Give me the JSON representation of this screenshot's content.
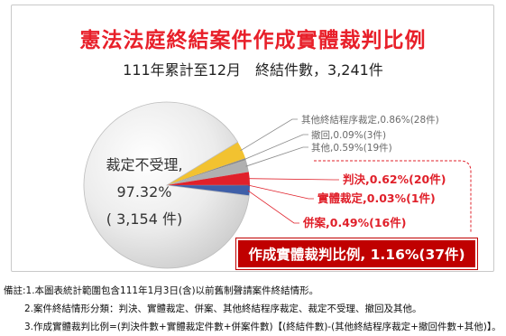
{
  "header": {
    "title": "憲法法庭終結案件作成實體裁判比例",
    "subtitle": "111年累計至12月　終結件數，3,241件"
  },
  "chart_data": {
    "type": "pie",
    "title": "憲法法庭終結案件作成實體裁判比例",
    "subtitle": "111年累計至12月　終結件數，3,241件",
    "total": 3241,
    "slices": [
      {
        "key": "refused",
        "label": "裁定不受理",
        "percent": 97.32,
        "count": 3154,
        "color": "#e4e4e4"
      },
      {
        "key": "other_proc",
        "label": "其他終結程序裁定",
        "percent": 0.86,
        "count": 28,
        "color": "#f2c230"
      },
      {
        "key": "withdrawn",
        "label": "撤回",
        "percent": 0.09,
        "count": 3,
        "color": "#8c8c8c"
      },
      {
        "key": "other",
        "label": "其他",
        "percent": 0.59,
        "count": 19,
        "color": "#b0b0b0"
      },
      {
        "key": "judgment",
        "label": "判決",
        "percent": 0.62,
        "count": 20,
        "color": "#e0202a"
      },
      {
        "key": "substantive",
        "label": "實體裁定",
        "percent": 0.03,
        "count": 1,
        "color": "#8b1a1a"
      },
      {
        "key": "merged",
        "label": "併案",
        "percent": 0.49,
        "count": 16,
        "color": "#3f5fa8"
      }
    ],
    "labels": {
      "refused_name": "裁定不受理,",
      "refused_pct": "97.32%",
      "refused_count": "( 3,154 件)",
      "other_proc": "其他終結程序裁定,0.86%(28件)",
      "withdrawn": "撤回,0.09%(3件)",
      "other": "其他,0.59%(19件)",
      "judgment": "判決,0.62%(20件)",
      "substantive": "實體裁定,0.03%(1件)",
      "merged": "併案,0.49%(16件)"
    }
  },
  "highlight": {
    "text": "作成實體裁判比例, 1.16%(37件)",
    "color": "#c00000"
  },
  "notes": [
    "備註:1.本圖表統計範圍包含111年1月3日(含)以前舊制聲請案件終結情形。",
    "2.案件終結情形分類：判決、實體裁定、併案、其他終結程序裁定、裁定不受理、撤回及其他。",
    "3.作成實體裁判比例=(判決件數+實體裁定件數+併案件數)【(終結件數)-(其他終結程序裁定+撤回件數+其他)】。"
  ],
  "colors": {
    "title_red": "#e8202a",
    "label_red": "#e0202a",
    "label_gray": "#6a6a6a",
    "bracket_red": "#e0202a"
  }
}
